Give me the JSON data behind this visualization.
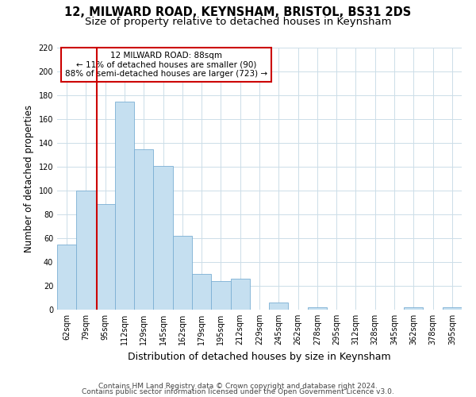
{
  "title": "12, MILWARD ROAD, KEYNSHAM, BRISTOL, BS31 2DS",
  "subtitle": "Size of property relative to detached houses in Keynsham",
  "xlabel": "Distribution of detached houses by size in Keynsham",
  "ylabel": "Number of detached properties",
  "categories": [
    "62sqm",
    "79sqm",
    "95sqm",
    "112sqm",
    "129sqm",
    "145sqm",
    "162sqm",
    "179sqm",
    "195sqm",
    "212sqm",
    "229sqm",
    "245sqm",
    "262sqm",
    "278sqm",
    "295sqm",
    "312sqm",
    "328sqm",
    "345sqm",
    "362sqm",
    "378sqm",
    "395sqm"
  ],
  "values": [
    55,
    100,
    89,
    175,
    135,
    121,
    62,
    30,
    24,
    26,
    0,
    6,
    0,
    2,
    0,
    0,
    0,
    0,
    2,
    0,
    2
  ],
  "bar_color": "#c5dff0",
  "bar_edge_color": "#7bafd4",
  "property_label": "12 MILWARD ROAD: 88sqm",
  "annotation_line1": "← 11% of detached houses are smaller (90)",
  "annotation_line2": "88% of semi-detached houses are larger (723) →",
  "annotation_box_color": "#ffffff",
  "annotation_border_color": "#cc0000",
  "vline_color": "#cc0000",
  "ylim": [
    0,
    220
  ],
  "yticks": [
    0,
    20,
    40,
    60,
    80,
    100,
    120,
    140,
    160,
    180,
    200,
    220
  ],
  "footer1": "Contains HM Land Registry data © Crown copyright and database right 2024.",
  "footer2": "Contains public sector information licensed under the Open Government Licence v3.0.",
  "bg_color": "#ffffff",
  "grid_color": "#ccdde8",
  "title_fontsize": 10.5,
  "subtitle_fontsize": 9.5,
  "ylabel_fontsize": 8.5,
  "xlabel_fontsize": 9,
  "tick_fontsize": 7,
  "annotation_fontsize": 7.5,
  "footer_fontsize": 6.5
}
